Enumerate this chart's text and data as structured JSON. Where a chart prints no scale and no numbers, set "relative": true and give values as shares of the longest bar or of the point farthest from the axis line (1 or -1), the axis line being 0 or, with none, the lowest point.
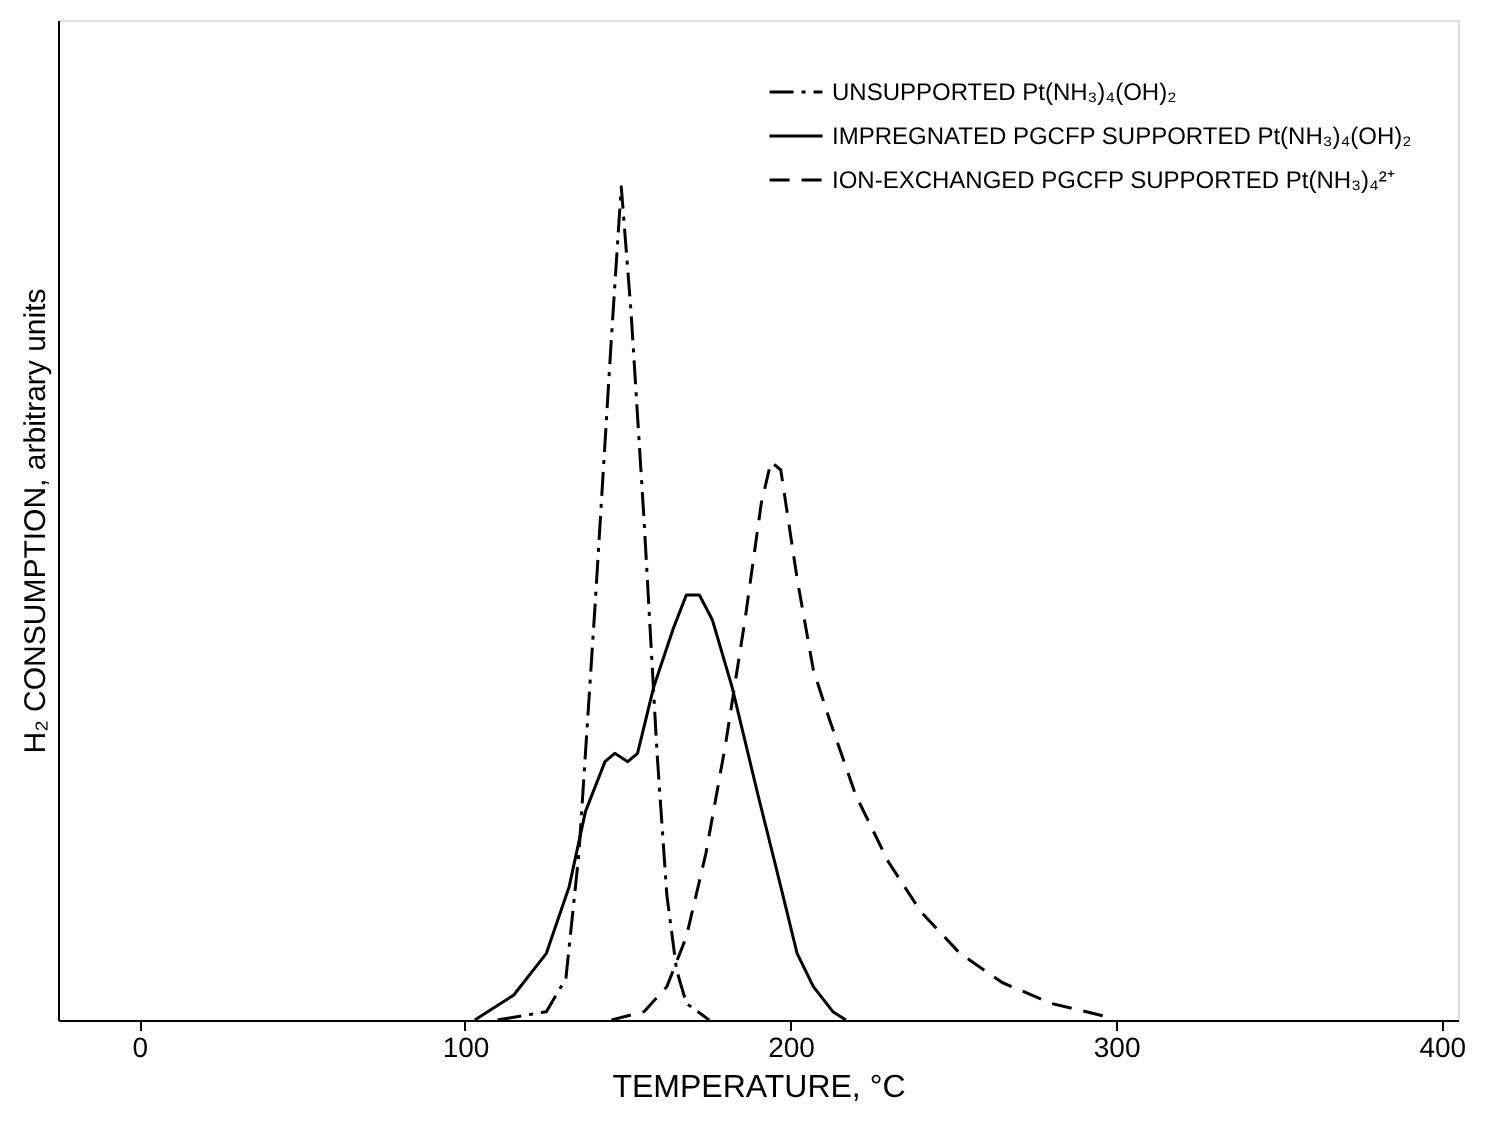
{
  "chart_data": {
    "type": "line",
    "relative": true,
    "xlabel": "TEMPERATURE, °C",
    "ylabel": "H₂ CONSUMPTION, arbitrary units",
    "xlim": [
      -25,
      405
    ],
    "xticks": [
      0,
      100,
      200,
      300,
      400
    ],
    "grid": false,
    "legend": "top right",
    "marker": "none",
    "series": [
      {
        "name": "UNSUPPORTED Pt(NH₃)₄(OH)₂",
        "color": "#000000",
        "line_style": "dashdot",
        "x": [
          110,
          125,
          131,
          135,
          140,
          145,
          148,
          151,
          155,
          159,
          162,
          165,
          168,
          175
        ],
        "values": [
          0,
          0.01,
          0.05,
          0.2,
          0.5,
          0.82,
          1.0,
          0.85,
          0.6,
          0.32,
          0.15,
          0.06,
          0.02,
          0
        ]
      },
      {
        "name": "IMPREGNATED PGCFP SUPPORTED Pt(NH₃)₄(OH)₂",
        "color": "#000000",
        "line_style": "solid",
        "x": [
          103,
          115,
          125,
          132,
          137,
          143,
          146,
          150,
          153,
          158,
          164,
          168,
          172,
          176,
          182,
          190,
          197,
          202,
          207,
          213,
          217
        ],
        "values": [
          0,
          0.03,
          0.08,
          0.16,
          0.25,
          0.31,
          0.32,
          0.31,
          0.32,
          0.4,
          0.47,
          0.51,
          0.51,
          0.48,
          0.4,
          0.27,
          0.16,
          0.08,
          0.04,
          0.01,
          0
        ]
      },
      {
        "name": "ION-EXCHANGED PGCFP SUPPORTED Pt(NH₃)₄²⁺",
        "color": "#000000",
        "line_style": "dashed",
        "x": [
          145,
          155,
          162,
          168,
          174,
          180,
          186,
          191,
          194,
          197,
          202,
          207,
          212,
          220,
          230,
          240,
          252,
          265,
          280,
          296
        ],
        "values": [
          0,
          0.01,
          0.04,
          0.1,
          0.2,
          0.33,
          0.48,
          0.62,
          0.67,
          0.66,
          0.53,
          0.42,
          0.36,
          0.27,
          0.19,
          0.13,
          0.08,
          0.045,
          0.02,
          0.005
        ]
      }
    ]
  }
}
